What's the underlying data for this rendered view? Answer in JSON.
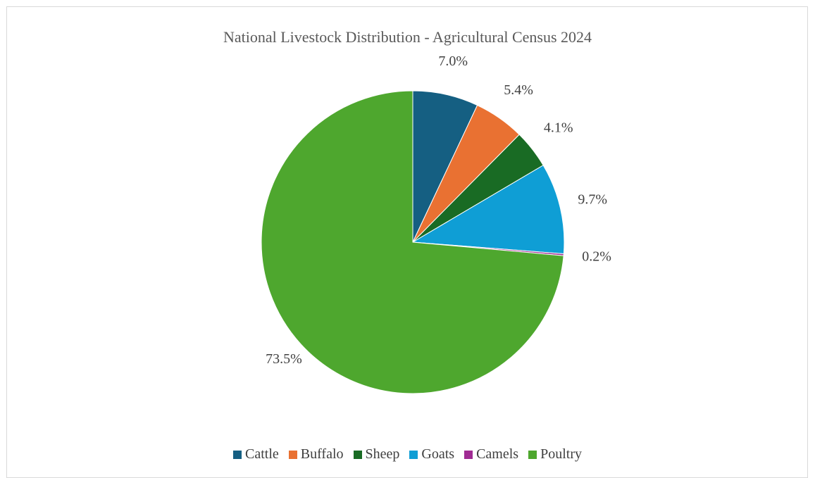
{
  "chart_data": {
    "type": "pie",
    "title": "National Livestock Distribution - Agricultural Census 2024",
    "categories": [
      "Cattle",
      "Buffalo",
      "Sheep",
      "Goats",
      "Camels",
      "Poultry"
    ],
    "values": [
      7.0,
      5.4,
      4.1,
      9.7,
      0.2,
      73.5
    ],
    "labels": [
      "7.0%",
      "5.4%",
      "4.1%",
      "9.7%",
      "0.2%",
      "73.5%"
    ],
    "colors": [
      "#155f82",
      "#e97132",
      "#196b24",
      "#0f9ed5",
      "#a02b93",
      "#4ea72e"
    ],
    "legend_position": "bottom"
  }
}
